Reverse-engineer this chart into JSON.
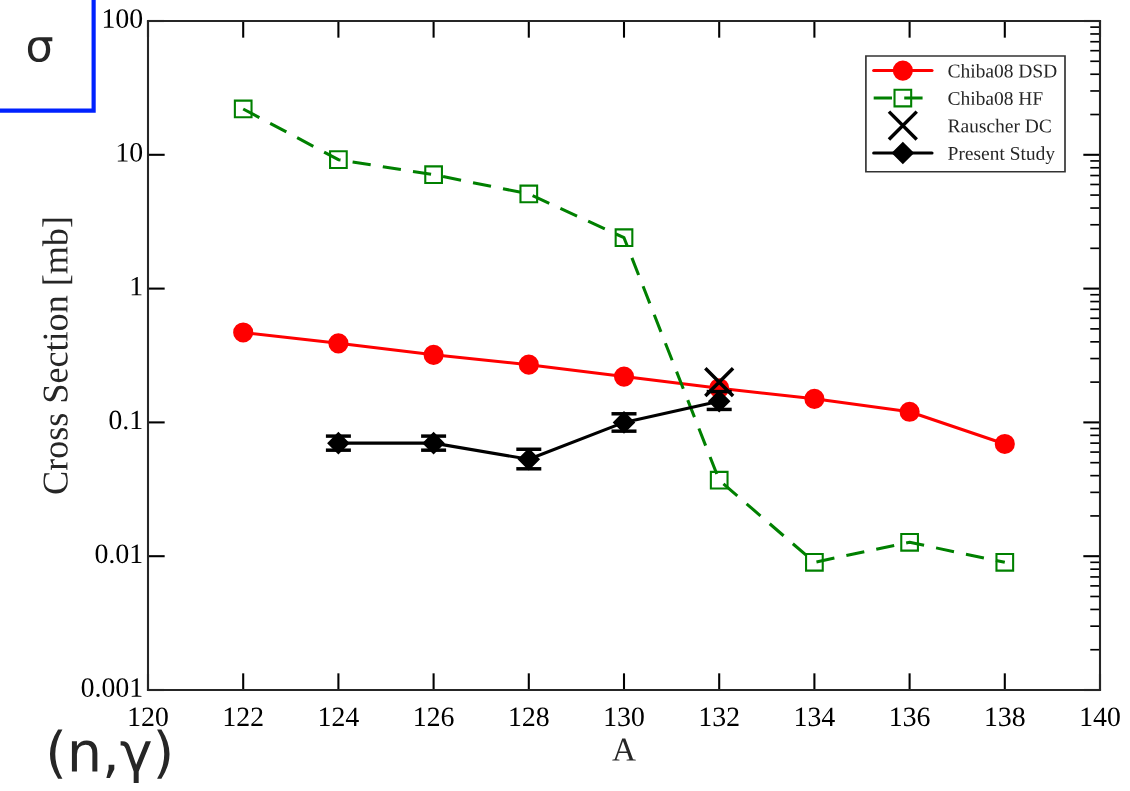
{
  "chart_data": {
    "type": "line",
    "xlabel": "A",
    "ylabel": "Cross Section [mb]",
    "annotations": [
      "σ",
      "(n,γ)"
    ],
    "log": "y",
    "xlim": [
      120,
      140
    ],
    "xticks": [
      120,
      122,
      124,
      126,
      128,
      130,
      132,
      134,
      136,
      138,
      140
    ],
    "ylim": [
      0.001,
      100
    ],
    "yticks": [
      0.001,
      0.01,
      0.1,
      1,
      10,
      100
    ],
    "grid": false,
    "legend": "top right",
    "series": [
      {
        "name": "Chiba08 DSD",
        "color": "#ff0000",
        "marker": "circle",
        "line_style": "solid",
        "x": [
          122,
          124,
          126,
          128,
          130,
          132,
          134,
          136,
          138
        ],
        "values": [
          0.47,
          0.39,
          0.32,
          0.27,
          0.22,
          0.18,
          0.15,
          0.12,
          0.069
        ]
      },
      {
        "name": "Chiba08 HF",
        "color": "#008000",
        "marker": "square",
        "line_style": "dashed",
        "x": [
          122,
          124,
          126,
          128,
          130,
          132,
          134,
          136,
          138
        ],
        "values": [
          22,
          9.2,
          7.1,
          5.1,
          2.4,
          0.037,
          0.009,
          0.0127,
          0.009
        ]
      },
      {
        "name": "Rauscher DC",
        "type": "scatter",
        "color": "#000000",
        "marker": "cross",
        "x": [
          132
        ],
        "values": [
          0.2
        ]
      },
      {
        "name": "Present Study",
        "color": "#000000",
        "marker": "diamond",
        "line_style": "solid",
        "x": [
          124,
          126,
          128,
          130,
          132
        ],
        "values": [
          0.07,
          0.07,
          0.053,
          0.1,
          0.144
        ],
        "errors": [
          [
            0.062,
            0.079
          ],
          [
            0.062,
            0.079
          ],
          [
            0.045,
            0.063
          ],
          [
            0.086,
            0.116
          ],
          [
            0.125,
            0.17
          ]
        ]
      }
    ]
  }
}
